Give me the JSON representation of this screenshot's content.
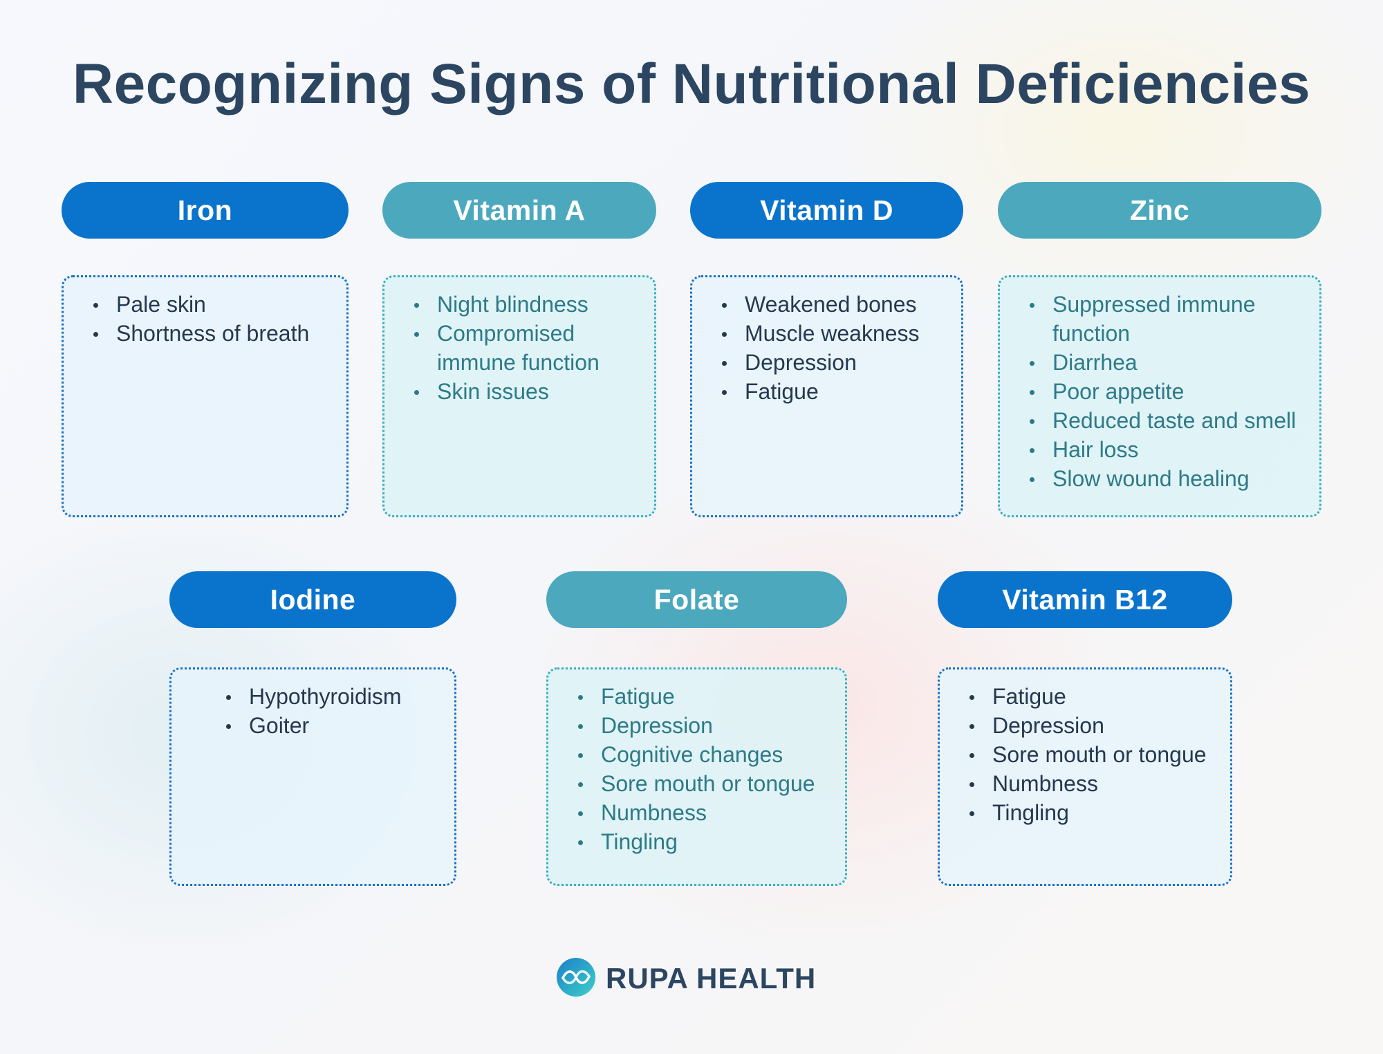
{
  "title": "Recognizing Signs of Nutritional Deficiencies",
  "cards": [
    {
      "name": "Iron",
      "style": "blue",
      "signs": [
        "Pale skin",
        "Shortness of breath"
      ]
    },
    {
      "name": "Vitamin A",
      "style": "teal",
      "signs": [
        "Night blindness",
        "Compromised immune function",
        "Skin issues"
      ]
    },
    {
      "name": "Vitamin D",
      "style": "blue",
      "signs": [
        "Weakened bones",
        "Muscle weakness",
        "Depression",
        "Fatigue"
      ]
    },
    {
      "name": "Zinc",
      "style": "teal",
      "signs": [
        "Suppressed immune function",
        "Diarrhea",
        "Poor appetite",
        "Reduced taste and smell",
        "Hair loss",
        "Slow wound healing"
      ]
    },
    {
      "name": "Iodine",
      "style": "blue",
      "signs": [
        "Hypothyroidism",
        "Goiter"
      ]
    },
    {
      "name": "Folate",
      "style": "teal",
      "signs": [
        "Fatigue",
        "Depression",
        "Cognitive changes",
        "Sore mouth or tongue",
        "Numbness",
        "Tingling"
      ]
    },
    {
      "name": "Vitamin B12",
      "style": "blue",
      "signs": [
        "Fatigue",
        "Depression",
        "Sore mouth or tongue",
        "Numbness",
        "Tingling"
      ]
    }
  ],
  "colors": {
    "blue_pill": "#0a74cc",
    "teal_pill": "#4ba8bd",
    "blue_text": "#25384e",
    "teal_text": "#2d7a87",
    "title": "#2c4661"
  },
  "logo": {
    "text": "RUPA HEALTH",
    "icon": "infinity-circle-icon"
  }
}
